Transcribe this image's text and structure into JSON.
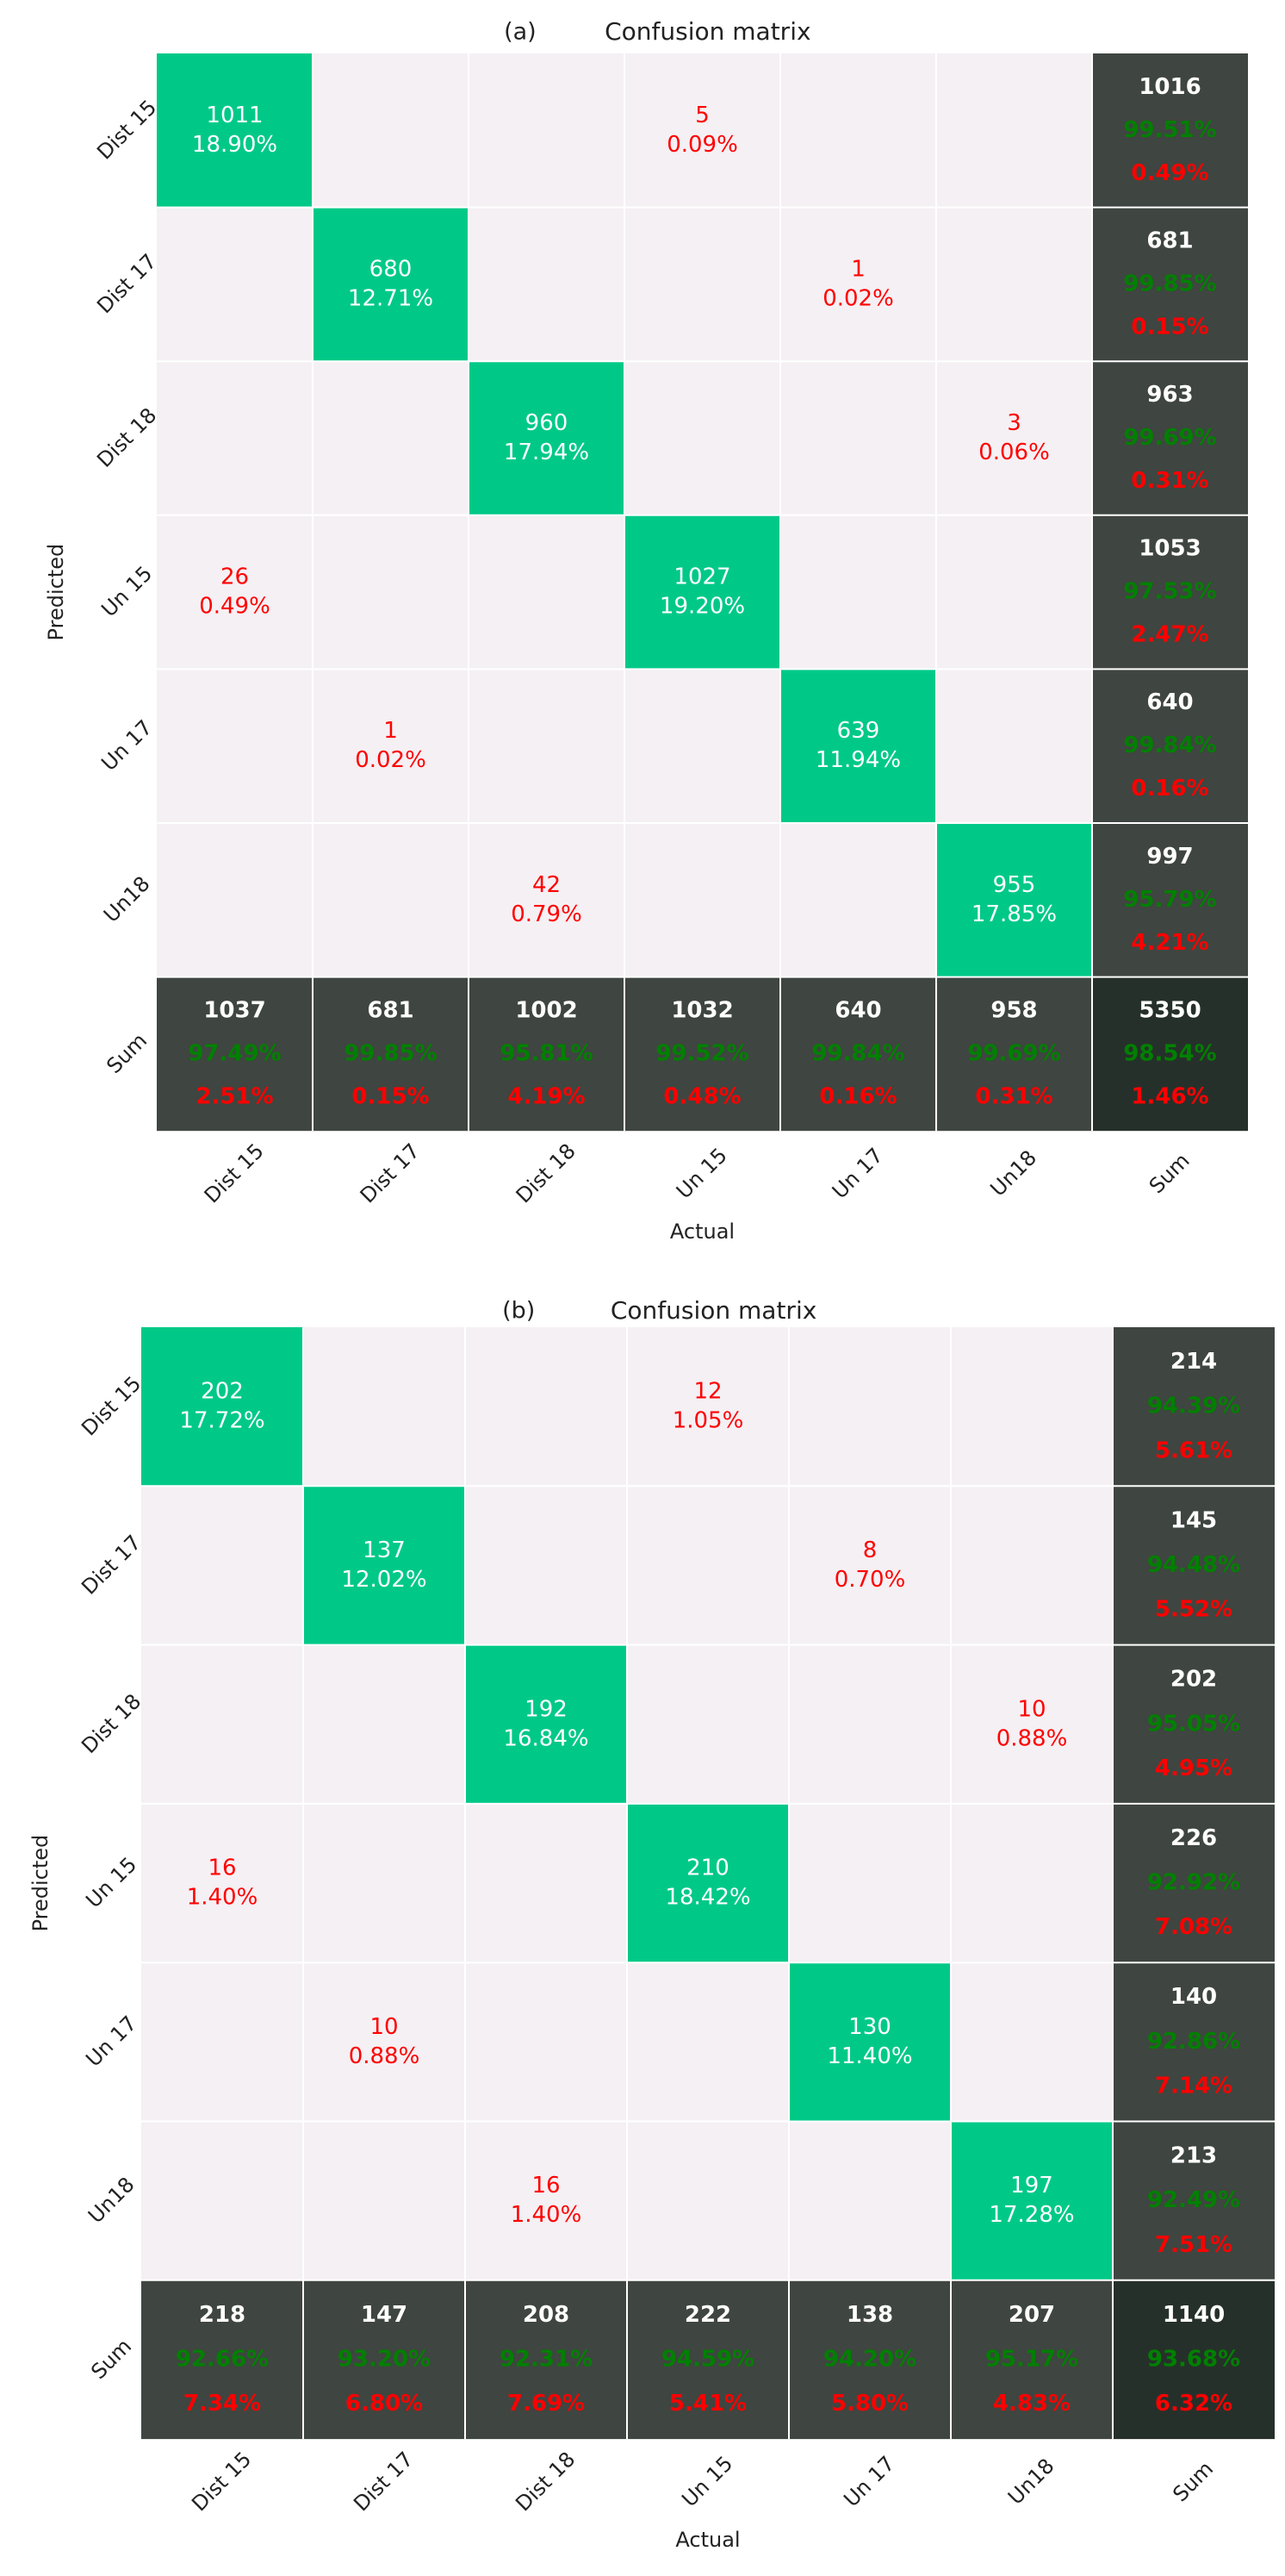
{
  "chart_data": [
    {
      "type": "heatmap",
      "panel_label": "(a)",
      "title": "Confusion matrix",
      "xlabel": "Actual",
      "ylabel": "Predicted",
      "classes": [
        "Dist 15",
        "Dist 17",
        "Dist 18",
        "Un 15",
        "Un 17",
        "Un18"
      ],
      "x_tick_labels": [
        "Dist 15",
        "Dist 17",
        "Dist 18",
        "Un 15",
        "Un 17",
        "Un18",
        "Sum"
      ],
      "y_tick_labels": [
        "Dist 15",
        "Dist 17",
        "Dist 18",
        "Un 15",
        "Un 17",
        "Un18",
        "Sum"
      ],
      "cells": [
        {
          "row": 0,
          "col": 0,
          "count": "1011",
          "pct": "18.90%"
        },
        {
          "row": 0,
          "col": 3,
          "count": "5",
          "pct": "0.09%"
        },
        {
          "row": 1,
          "col": 1,
          "count": "680",
          "pct": "12.71%"
        },
        {
          "row": 1,
          "col": 4,
          "count": "1",
          "pct": "0.02%"
        },
        {
          "row": 2,
          "col": 2,
          "count": "960",
          "pct": "17.94%"
        },
        {
          "row": 2,
          "col": 5,
          "count": "3",
          "pct": "0.06%"
        },
        {
          "row": 3,
          "col": 0,
          "count": "26",
          "pct": "0.49%"
        },
        {
          "row": 3,
          "col": 3,
          "count": "1027",
          "pct": "19.20%"
        },
        {
          "row": 4,
          "col": 1,
          "count": "1",
          "pct": "0.02%"
        },
        {
          "row": 4,
          "col": 4,
          "count": "639",
          "pct": "11.94%"
        },
        {
          "row": 5,
          "col": 2,
          "count": "42",
          "pct": "0.79%"
        },
        {
          "row": 5,
          "col": 5,
          "count": "955",
          "pct": "17.85%"
        }
      ],
      "row_sums": [
        {
          "total": "1016",
          "correct": "99.51%",
          "error": "0.49%"
        },
        {
          "total": "681",
          "correct": "99.85%",
          "error": "0.15%"
        },
        {
          "total": "963",
          "correct": "99.69%",
          "error": "0.31%"
        },
        {
          "total": "1053",
          "correct": "97.53%",
          "error": "2.47%"
        },
        {
          "total": "640",
          "correct": "99.84%",
          "error": "0.16%"
        },
        {
          "total": "997",
          "correct": "95.79%",
          "error": "4.21%"
        }
      ],
      "col_sums": [
        {
          "total": "1037",
          "correct": "97.49%",
          "error": "2.51%"
        },
        {
          "total": "681",
          "correct": "99.85%",
          "error": "0.15%"
        },
        {
          "total": "1002",
          "correct": "95.81%",
          "error": "4.19%"
        },
        {
          "total": "1032",
          "correct": "99.52%",
          "error": "0.48%"
        },
        {
          "total": "640",
          "correct": "99.84%",
          "error": "0.16%"
        },
        {
          "total": "958",
          "correct": "99.69%",
          "error": "0.31%"
        }
      ],
      "grand_sum": {
        "total": "5350",
        "correct": "98.54%",
        "error": "1.46%"
      }
    },
    {
      "type": "heatmap",
      "panel_label": "(b)",
      "title": "Confusion matrix",
      "xlabel": "Actual",
      "ylabel": "Predicted",
      "classes": [
        "Dist 15",
        "Dist 17",
        "Dist 18",
        "Un 15",
        "Un 17",
        "Un18"
      ],
      "x_tick_labels": [
        "Dist 15",
        "Dist 17",
        "Dist 18",
        "Un 15",
        "Un 17",
        "Un18",
        "Sum"
      ],
      "y_tick_labels": [
        "Dist 15",
        "Dist 17",
        "Dist 18",
        "Un 15",
        "Un 17",
        "Un18",
        "Sum"
      ],
      "cells": [
        {
          "row": 0,
          "col": 0,
          "count": "202",
          "pct": "17.72%"
        },
        {
          "row": 0,
          "col": 3,
          "count": "12",
          "pct": "1.05%"
        },
        {
          "row": 1,
          "col": 1,
          "count": "137",
          "pct": "12.02%"
        },
        {
          "row": 1,
          "col": 4,
          "count": "8",
          "pct": "0.70%"
        },
        {
          "row": 2,
          "col": 2,
          "count": "192",
          "pct": "16.84%"
        },
        {
          "row": 2,
          "col": 5,
          "count": "10",
          "pct": "0.88%"
        },
        {
          "row": 3,
          "col": 0,
          "count": "16",
          "pct": "1.40%"
        },
        {
          "row": 3,
          "col": 3,
          "count": "210",
          "pct": "18.42%"
        },
        {
          "row": 4,
          "col": 1,
          "count": "10",
          "pct": "0.88%"
        },
        {
          "row": 4,
          "col": 4,
          "count": "130",
          "pct": "11.40%"
        },
        {
          "row": 5,
          "col": 2,
          "count": "16",
          "pct": "1.40%"
        },
        {
          "row": 5,
          "col": 5,
          "count": "197",
          "pct": "17.28%"
        }
      ],
      "row_sums": [
        {
          "total": "214",
          "correct": "94.39%",
          "error": "5.61%"
        },
        {
          "total": "145",
          "correct": "94.48%",
          "error": "5.52%"
        },
        {
          "total": "202",
          "correct": "95.05%",
          "error": "4.95%"
        },
        {
          "total": "226",
          "correct": "92.92%",
          "error": "7.08%"
        },
        {
          "total": "140",
          "correct": "92.86%",
          "error": "7.14%"
        },
        {
          "total": "213",
          "correct": "92.49%",
          "error": "7.51%"
        }
      ],
      "col_sums": [
        {
          "total": "218",
          "correct": "92.66%",
          "error": "7.34%"
        },
        {
          "total": "147",
          "correct": "93.20%",
          "error": "6.80%"
        },
        {
          "total": "208",
          "correct": "92.31%",
          "error": "7.69%"
        },
        {
          "total": "222",
          "correct": "94.59%",
          "error": "5.41%"
        },
        {
          "total": "138",
          "correct": "94.20%",
          "error": "5.80%"
        },
        {
          "total": "207",
          "correct": "95.17%",
          "error": "4.83%"
        }
      ],
      "grand_sum": {
        "total": "1140",
        "correct": "93.68%",
        "error": "6.32%"
      }
    }
  ],
  "colors": {
    "diagonal": "#00c987",
    "empty": "#f5f0f4",
    "sum_cell": "#3f4540",
    "grand_sum_cell": "#26302a",
    "grid_line": "#ffffff",
    "correct_text": "#008000",
    "error_text": "#ff0000",
    "diag_text": "#ffffff",
    "sum_total_text": "#ffffff",
    "label_text": "#222222"
  }
}
